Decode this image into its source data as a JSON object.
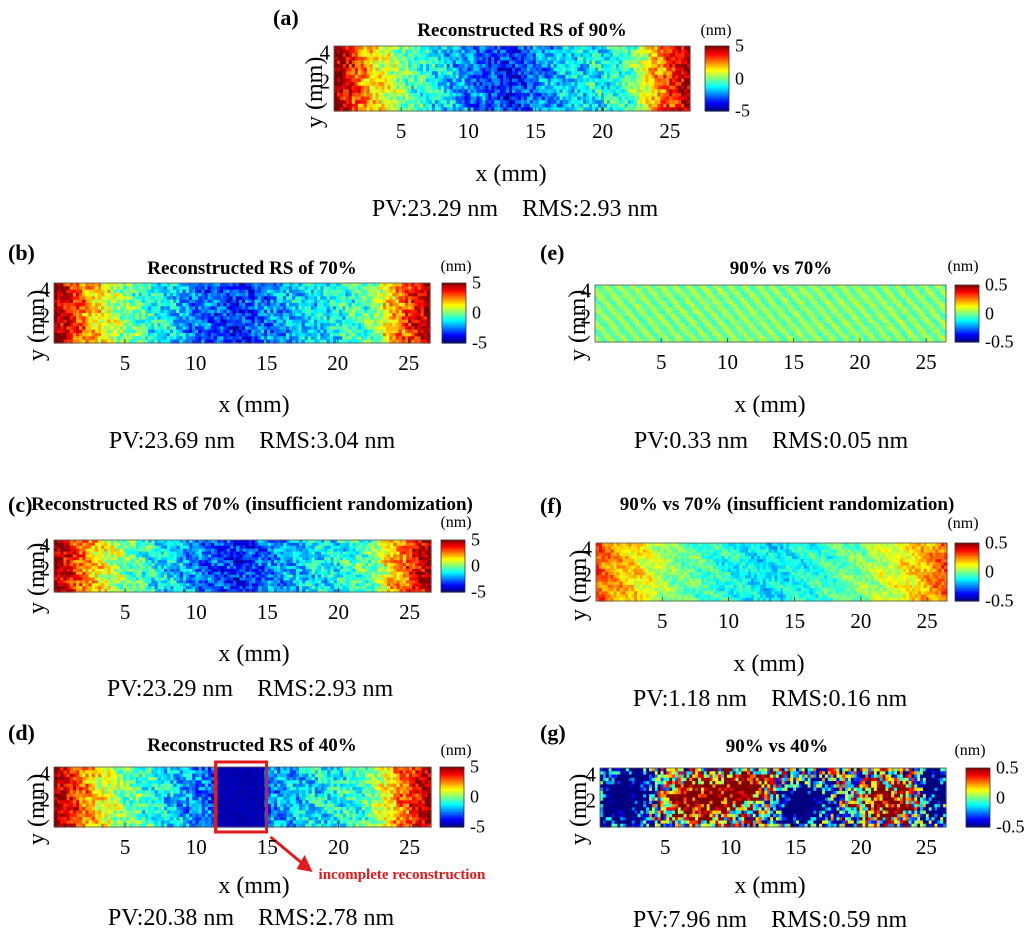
{
  "chart_data": [
    {
      "type": "heatmap",
      "label": "(a)",
      "title": "Reconstructed RS of 90%",
      "xlabel": "x (mm)",
      "ylabel": "y (mm)",
      "x_ticks": [
        "5",
        "10",
        "15",
        "20",
        "25"
      ],
      "y_ticks": [
        "4",
        "2"
      ],
      "colorbar_unit": "(nm)",
      "colorbar_ticks": [
        "5",
        "0",
        "-5"
      ],
      "stats": "PV:23.29 nm    RMS:2.93 nm",
      "xlim": [
        0,
        26.5
      ],
      "ylim": [
        0,
        4.5
      ],
      "clim": [
        -5,
        5
      ],
      "pattern": "surface",
      "profile_x": [
        0,
        3,
        5,
        8,
        10,
        13,
        15,
        18,
        20,
        22,
        24,
        26.5
      ],
      "profile_value": [
        5,
        1.5,
        0,
        -1.5,
        -2.5,
        -3.5,
        -2.5,
        -1.5,
        -1.2,
        -0.5,
        2,
        5
      ]
    },
    {
      "type": "heatmap",
      "label": "(b)",
      "title": "Reconstructed RS of 70%",
      "xlabel": "x (mm)",
      "ylabel": "y (mm)",
      "x_ticks": [
        "5",
        "10",
        "15",
        "20",
        "25"
      ],
      "y_ticks": [
        "4",
        "2"
      ],
      "colorbar_unit": "(nm)",
      "colorbar_ticks": [
        "5",
        "0",
        "-5"
      ],
      "stats": "PV:23.69 nm    RMS:3.04 nm",
      "xlim": [
        0,
        26.5
      ],
      "ylim": [
        0,
        4.5
      ],
      "clim": [
        -5,
        5
      ],
      "pattern": "surface",
      "profile_x": [
        0,
        3,
        5,
        8,
        10,
        13,
        15,
        18,
        20,
        22,
        24,
        26.5
      ],
      "profile_value": [
        5,
        1.5,
        0,
        -1.5,
        -2.5,
        -3.5,
        -2.5,
        -1.5,
        -1.2,
        -0.5,
        2,
        5
      ]
    },
    {
      "type": "heatmap",
      "label": "(c)",
      "title": "Reconstructed RS of 70% (insufficient randomization)",
      "xlabel": "x (mm)",
      "ylabel": "y (mm)",
      "x_ticks": [
        "5",
        "10",
        "15",
        "20",
        "25"
      ],
      "y_ticks": [
        "4",
        "2"
      ],
      "colorbar_unit": "(nm)",
      "colorbar_ticks": [
        "5",
        "0",
        "-5"
      ],
      "stats": "PV:23.29 nm    RMS:2.93 nm",
      "xlim": [
        0,
        26.5
      ],
      "ylim": [
        0,
        4.5
      ],
      "clim": [
        -5,
        5
      ],
      "pattern": "surface",
      "profile_x": [
        0,
        3,
        5,
        8,
        10,
        13,
        15,
        18,
        20,
        22,
        24,
        26.5
      ],
      "profile_value": [
        5,
        1.5,
        0,
        -1.5,
        -2.5,
        -3.5,
        -2.5,
        -1.5,
        -1.2,
        -0.5,
        2,
        5
      ]
    },
    {
      "type": "heatmap",
      "label": "(d)",
      "title": "Reconstructed RS of 40%",
      "xlabel": "x (mm)",
      "ylabel": "y (mm)",
      "x_ticks": [
        "5",
        "10",
        "15",
        "20",
        "25"
      ],
      "y_ticks": [
        "4",
        "2"
      ],
      "colorbar_unit": "(nm)",
      "colorbar_ticks": [
        "5",
        "0",
        "-5"
      ],
      "stats": "PV:20.38 nm    RMS:2.78 nm",
      "xlim": [
        0,
        26.5
      ],
      "ylim": [
        0,
        4.5
      ],
      "clim": [
        -5,
        5
      ],
      "pattern": "surface",
      "profile_x": [
        0,
        3,
        5,
        8,
        10,
        13,
        15,
        18,
        20,
        22,
        24,
        26.5
      ],
      "profile_value": [
        5,
        1.5,
        0,
        -1.5,
        -2.5,
        -3.5,
        -2.5,
        -1.5,
        -1.2,
        -0.5,
        2,
        5
      ],
      "highlight_region": {
        "x": [
          11.5,
          14.8
        ],
        "y": [
          0,
          4.5
        ],
        "value": -4.5
      },
      "annotation": "incomplete reconstruction"
    },
    {
      "type": "heatmap",
      "label": "(e)",
      "title": "90% vs 70%",
      "xlabel": "x (mm)",
      "ylabel": "y (mm)",
      "x_ticks": [
        "5",
        "10",
        "15",
        "20",
        "25"
      ],
      "y_ticks": [
        "4",
        "2"
      ],
      "colorbar_unit": "(nm)",
      "colorbar_ticks": [
        "0.5",
        "0",
        "-0.5"
      ],
      "stats": "PV:0.33 nm    RMS:0.05 nm",
      "xlim": [
        0,
        26.5
      ],
      "ylim": [
        0,
        4.5
      ],
      "clim": [
        -0.5,
        0.5
      ],
      "pattern": "ripple",
      "base_value": 0,
      "noise": 0.06
    },
    {
      "type": "heatmap",
      "label": "(f)",
      "title": "90% vs 70% (insufficient randomization)",
      "xlabel": "x (mm)",
      "ylabel": "y (mm)",
      "x_ticks": [
        "5",
        "10",
        "15",
        "20",
        "25"
      ],
      "y_ticks": [
        "4",
        "2"
      ],
      "colorbar_unit": "(nm)",
      "colorbar_ticks": [
        "0.5",
        "0",
        "-0.5"
      ],
      "stats": "PV:1.18 nm    RMS:0.16 nm",
      "xlim": [
        0,
        26.5
      ],
      "ylim": [
        0,
        4.5
      ],
      "clim": [
        -0.5,
        0.5
      ],
      "pattern": "surface_noisy",
      "profile_x": [
        0,
        3,
        6,
        10,
        13,
        16,
        20,
        24,
        26.5
      ],
      "profile_value": [
        0.3,
        0.15,
        0.0,
        -0.1,
        -0.15,
        -0.1,
        0.0,
        0.15,
        0.3
      ],
      "noise": 0.15
    },
    {
      "type": "heatmap",
      "label": "(g)",
      "title": "90% vs 40%",
      "xlabel": "x (mm)",
      "ylabel": "y (mm)",
      "x_ticks": [
        "5",
        "10",
        "15",
        "20",
        "25"
      ],
      "y_ticks": [
        "4",
        "2"
      ],
      "colorbar_unit": "(nm)",
      "colorbar_ticks": [
        "0.5",
        "0",
        "-0.5"
      ],
      "stats": "PV:7.96 nm    RMS:0.59 nm",
      "xlim": [
        0,
        26.5
      ],
      "ylim": [
        0,
        4.5
      ],
      "clim": [
        -0.5,
        0.5
      ],
      "pattern": "blobs",
      "blobs": [
        {
          "x": 7.5,
          "y": 2.0,
          "sx": 3.5,
          "sy": 1.8,
          "amp": 0.9
        },
        {
          "x": 11.5,
          "y": 3.2,
          "sx": 2.5,
          "sy": 1.5,
          "amp": 0.7
        },
        {
          "x": 15.5,
          "y": 1.8,
          "sx": 2.2,
          "sy": 1.4,
          "amp": -1.0
        },
        {
          "x": 22.0,
          "y": 2.0,
          "sx": 2.8,
          "sy": 1.6,
          "amp": 0.8
        },
        {
          "x": 2.0,
          "y": 2.2,
          "sx": 2.2,
          "sy": 2.5,
          "amp": -0.9
        },
        {
          "x": 25.5,
          "y": 2.5,
          "sx": 1.2,
          "sy": 2.5,
          "amp": -0.7
        }
      ],
      "base_value": -0.15,
      "noise": 0.55
    }
  ]
}
